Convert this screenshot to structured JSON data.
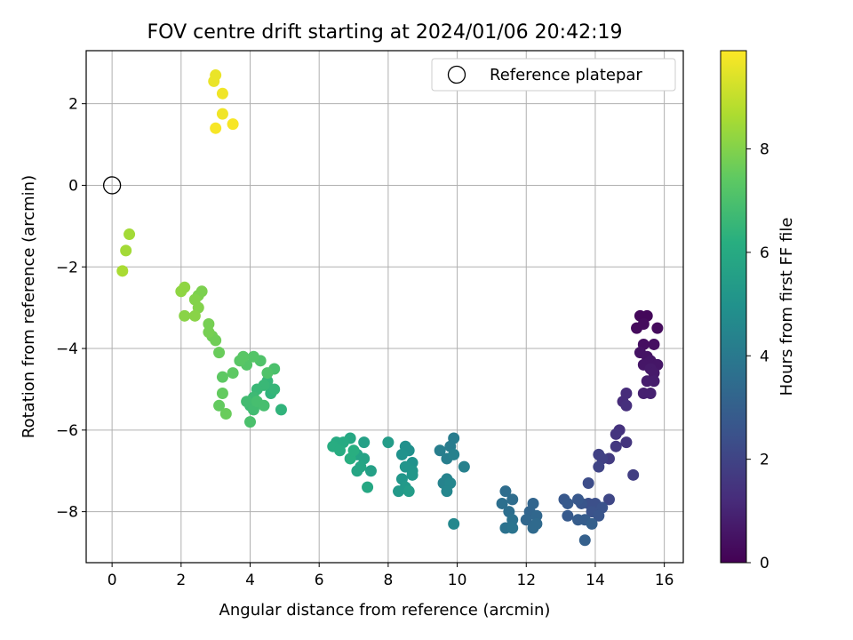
{
  "chart_data": {
    "type": "scatter",
    "title": "FOV centre drift starting at 2024/01/06 20:42:19",
    "xlabel": "Angular distance from reference (arcmin)",
    "ylabel": "Rotation from reference (arcmin)",
    "xlim": [
      -0.75,
      16.55
    ],
    "ylim": [
      -9.25,
      3.3
    ],
    "xticks": [
      0,
      2,
      4,
      6,
      8,
      10,
      12,
      14,
      16
    ],
    "yticks": [
      -8,
      -6,
      -4,
      -2,
      0,
      2
    ],
    "grid": true,
    "legend": {
      "position": "top-right",
      "entries": [
        "Reference platepar"
      ]
    },
    "reference_point": {
      "x": 0,
      "y": 0
    },
    "colorbar": {
      "label": "Hours from first FF file",
      "range": [
        0,
        9.9
      ],
      "ticks": [
        0,
        2,
        4,
        6,
        8
      ],
      "colormap": "viridis"
    },
    "series": [
      {
        "points": [
          [
            15.3,
            -3.2,
            0.2
          ],
          [
            15.5,
            -3.2,
            0.2
          ],
          [
            15.2,
            -3.5,
            0.3
          ],
          [
            15.4,
            -3.4,
            0.3
          ],
          [
            15.8,
            -3.5,
            0.3
          ],
          [
            15.4,
            -3.9,
            0.4
          ],
          [
            15.7,
            -3.9,
            0.4
          ],
          [
            15.3,
            -4.1,
            0.5
          ],
          [
            15.5,
            -4.2,
            0.5
          ],
          [
            15.6,
            -4.3,
            0.6
          ],
          [
            15.4,
            -4.4,
            0.6
          ],
          [
            15.8,
            -4.4,
            0.6
          ],
          [
            15.6,
            -4.5,
            0.7
          ],
          [
            15.7,
            -4.6,
            0.7
          ],
          [
            15.5,
            -4.8,
            0.8
          ],
          [
            15.7,
            -4.8,
            0.8
          ],
          [
            15.4,
            -5.1,
            0.9
          ],
          [
            15.6,
            -5.1,
            0.9
          ],
          [
            14.9,
            -5.1,
            1.2
          ],
          [
            14.8,
            -5.3,
            1.2
          ],
          [
            14.9,
            -5.4,
            1.3
          ],
          [
            14.7,
            -6.0,
            1.4
          ],
          [
            14.6,
            -6.1,
            1.5
          ],
          [
            14.9,
            -6.3,
            1.5
          ],
          [
            14.6,
            -6.4,
            1.6
          ],
          [
            14.4,
            -6.7,
            1.7
          ],
          [
            15.1,
            -7.1,
            1.8
          ],
          [
            14.1,
            -6.6,
            1.9
          ],
          [
            14.2,
            -6.7,
            1.9
          ],
          [
            14.1,
            -6.9,
            2.0
          ],
          [
            14.4,
            -7.7,
            2.1
          ],
          [
            13.8,
            -7.3,
            2.3
          ],
          [
            13.8,
            -7.8,
            2.4
          ],
          [
            14.0,
            -7.8,
            2.4
          ],
          [
            14.2,
            -7.9,
            2.5
          ],
          [
            13.9,
            -8.0,
            2.5
          ],
          [
            14.1,
            -8.1,
            2.6
          ],
          [
            13.6,
            -7.8,
            2.6
          ],
          [
            13.5,
            -7.7,
            2.7
          ],
          [
            13.1,
            -7.7,
            2.7
          ],
          [
            13.2,
            -7.8,
            2.8
          ],
          [
            13.2,
            -8.1,
            2.8
          ],
          [
            13.5,
            -8.2,
            2.9
          ],
          [
            13.7,
            -8.2,
            2.9
          ],
          [
            13.9,
            -8.3,
            3.0
          ],
          [
            13.7,
            -8.7,
            3.0
          ],
          [
            12.2,
            -7.8,
            3.2
          ],
          [
            12.1,
            -8.0,
            3.2
          ],
          [
            12.3,
            -8.1,
            3.3
          ],
          [
            12.0,
            -8.2,
            3.3
          ],
          [
            12.3,
            -8.3,
            3.4
          ],
          [
            12.2,
            -8.4,
            3.4
          ],
          [
            11.6,
            -7.7,
            3.5
          ],
          [
            11.4,
            -7.5,
            3.5
          ],
          [
            11.3,
            -7.8,
            3.6
          ],
          [
            11.5,
            -8.0,
            3.6
          ],
          [
            11.6,
            -8.2,
            3.7
          ],
          [
            11.4,
            -8.4,
            3.7
          ],
          [
            11.6,
            -8.4,
            3.8
          ],
          [
            9.9,
            -6.2,
            4.1
          ],
          [
            9.8,
            -6.4,
            4.1
          ],
          [
            9.5,
            -6.5,
            4.2
          ],
          [
            9.7,
            -6.7,
            4.2
          ],
          [
            9.9,
            -6.6,
            4.3
          ],
          [
            10.2,
            -6.9,
            4.3
          ],
          [
            9.7,
            -7.2,
            4.4
          ],
          [
            9.6,
            -7.3,
            4.4
          ],
          [
            9.8,
            -7.3,
            4.5
          ],
          [
            9.7,
            -7.5,
            4.5
          ],
          [
            9.9,
            -8.3,
            4.6
          ],
          [
            8.5,
            -6.4,
            4.9
          ],
          [
            8.6,
            -6.5,
            4.9
          ],
          [
            8.4,
            -6.6,
            5.0
          ],
          [
            8.7,
            -6.8,
            5.0
          ],
          [
            8.5,
            -6.9,
            5.1
          ],
          [
            8.7,
            -7.0,
            5.1
          ],
          [
            8.4,
            -7.2,
            5.2
          ],
          [
            8.7,
            -7.1,
            5.2
          ],
          [
            8.5,
            -7.4,
            5.3
          ],
          [
            8.3,
            -7.5,
            5.3
          ],
          [
            8.6,
            -7.5,
            5.4
          ],
          [
            8.0,
            -6.3,
            5.4
          ],
          [
            7.5,
            -7.0,
            5.6
          ],
          [
            7.3,
            -6.3,
            5.6
          ],
          [
            7.1,
            -6.6,
            5.7
          ],
          [
            7.3,
            -6.7,
            5.7
          ],
          [
            7.2,
            -6.9,
            5.8
          ],
          [
            7.1,
            -7.0,
            5.8
          ],
          [
            7.4,
            -7.4,
            5.9
          ],
          [
            6.9,
            -6.2,
            5.9
          ],
          [
            6.7,
            -6.3,
            6.0
          ],
          [
            6.5,
            -6.3,
            6.0
          ],
          [
            6.4,
            -6.4,
            6.1
          ],
          [
            6.6,
            -6.5,
            6.1
          ],
          [
            6.9,
            -6.7,
            6.2
          ],
          [
            7.0,
            -6.5,
            6.2
          ],
          [
            4.9,
            -5.5,
            6.4
          ],
          [
            4.6,
            -5.1,
            6.4
          ],
          [
            4.7,
            -5.0,
            6.5
          ],
          [
            4.5,
            -4.8,
            6.5
          ],
          [
            4.4,
            -4.9,
            6.6
          ],
          [
            4.2,
            -5.0,
            6.6
          ],
          [
            4.1,
            -5.2,
            6.7
          ],
          [
            4.0,
            -5.4,
            6.7
          ],
          [
            3.9,
            -5.3,
            6.8
          ],
          [
            4.1,
            -5.5,
            6.8
          ],
          [
            4.2,
            -5.3,
            6.9
          ],
          [
            4.4,
            -5.4,
            6.9
          ],
          [
            4.0,
            -5.8,
            7.0
          ],
          [
            4.7,
            -4.5,
            7.0
          ],
          [
            4.5,
            -4.6,
            7.1
          ],
          [
            4.3,
            -4.3,
            7.1
          ],
          [
            4.1,
            -4.2,
            7.2
          ],
          [
            3.9,
            -4.4,
            7.2
          ],
          [
            3.8,
            -4.2,
            7.3
          ],
          [
            3.7,
            -4.3,
            7.3
          ],
          [
            3.5,
            -4.6,
            7.4
          ],
          [
            3.2,
            -4.7,
            7.4
          ],
          [
            3.2,
            -5.1,
            7.5
          ],
          [
            3.1,
            -5.4,
            7.5
          ],
          [
            3.3,
            -5.6,
            7.6
          ],
          [
            3.1,
            -4.1,
            7.6
          ],
          [
            3.0,
            -3.8,
            7.7
          ],
          [
            2.9,
            -3.7,
            7.7
          ],
          [
            2.8,
            -3.4,
            7.8
          ],
          [
            2.8,
            -3.6,
            7.8
          ],
          [
            2.6,
            -2.6,
            7.9
          ],
          [
            2.5,
            -2.7,
            7.9
          ],
          [
            2.4,
            -2.8,
            8.0
          ],
          [
            2.5,
            -3.0,
            8.0
          ],
          [
            2.4,
            -3.2,
            8.1
          ],
          [
            2.1,
            -3.2,
            8.1
          ],
          [
            2.0,
            -2.6,
            8.2
          ],
          [
            2.1,
            -2.5,
            8.2
          ],
          [
            0.5,
            -1.2,
            8.5
          ],
          [
            0.4,
            -1.6,
            8.5
          ],
          [
            0.3,
            -2.1,
            8.6
          ],
          [
            3.0,
            2.7,
            9.6
          ],
          [
            2.95,
            2.55,
            9.6
          ],
          [
            3.2,
            2.25,
            9.7
          ],
          [
            3.2,
            1.75,
            9.7
          ],
          [
            3.5,
            1.5,
            9.8
          ],
          [
            3.0,
            1.4,
            9.8
          ]
        ]
      }
    ]
  }
}
